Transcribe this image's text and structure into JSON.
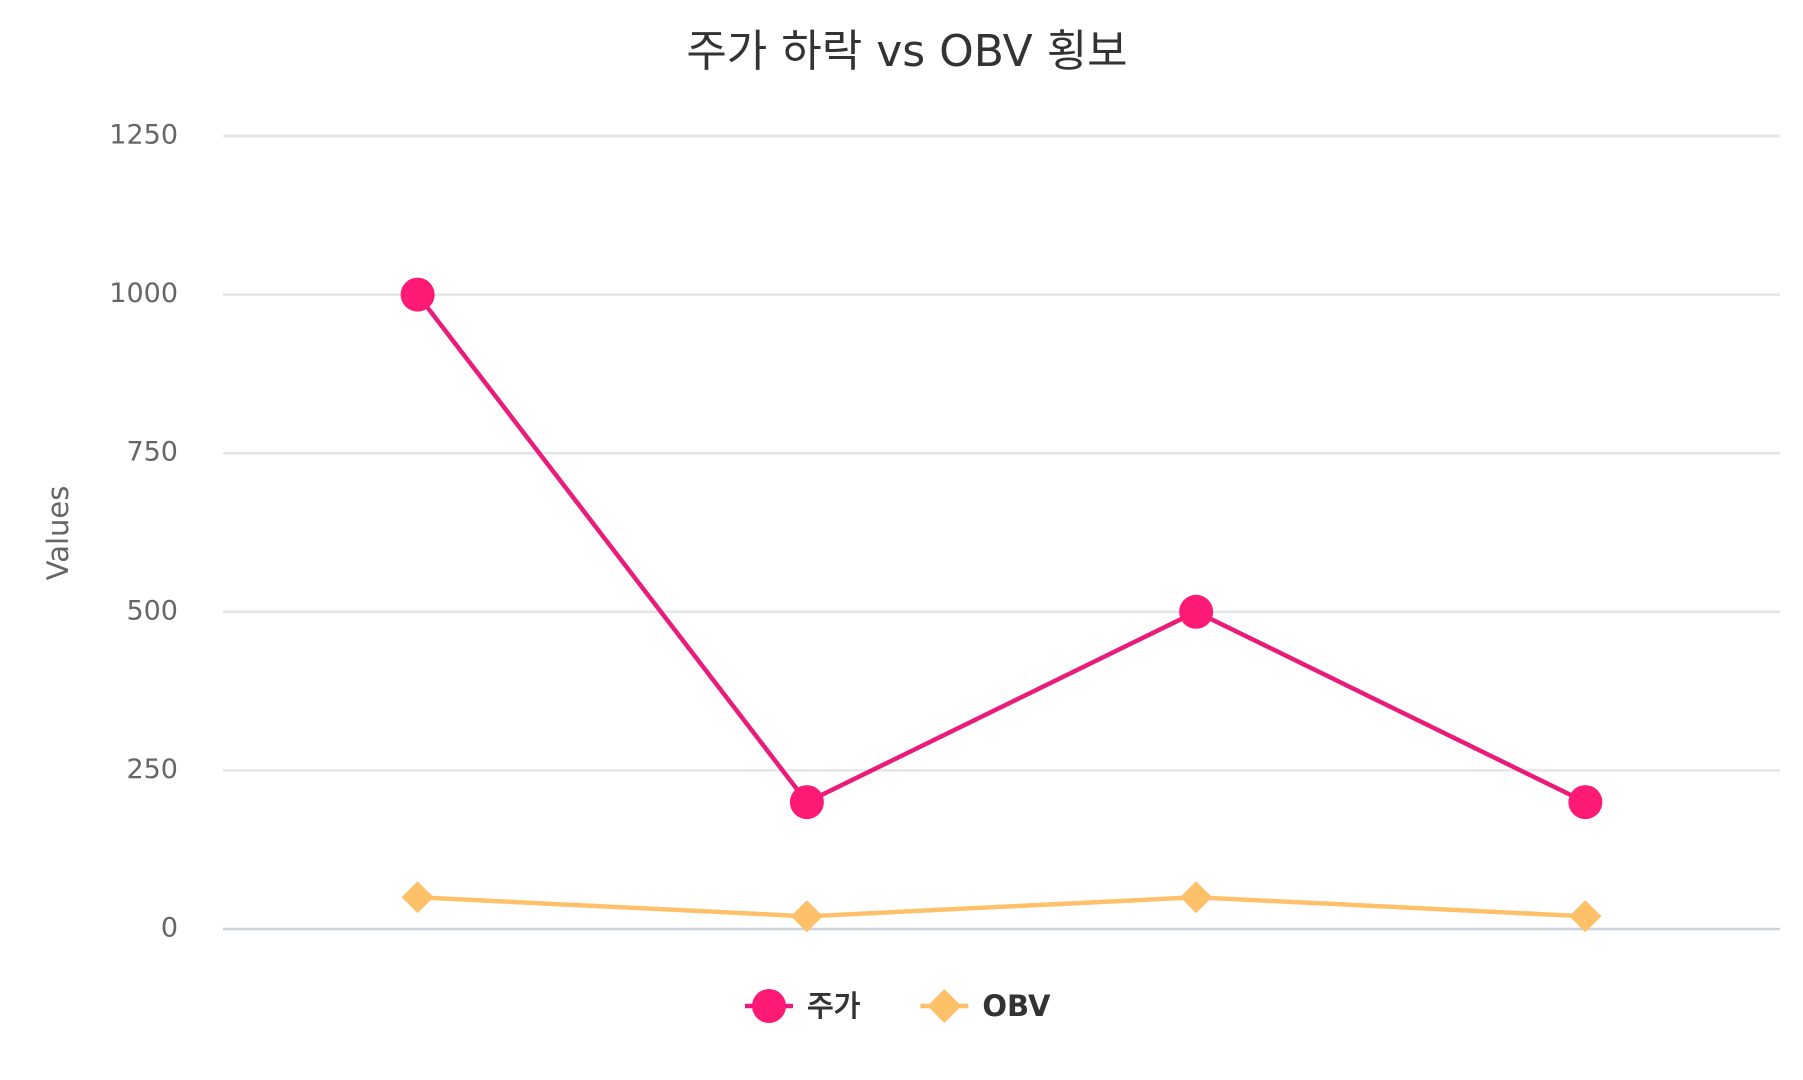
{
  "chart_data": {
    "type": "line",
    "title": "주가 하락 vs OBV 횡보",
    "y_label": "Values",
    "categories": [
      null,
      null,
      null,
      null
    ],
    "series": [
      {
        "name": "주가",
        "color": "#ff1a75",
        "line_color": "#ea1c7b",
        "marker": "circle",
        "values": [
          1000,
          200,
          500,
          200
        ]
      },
      {
        "name": "OBV",
        "color": "#ffc06a",
        "line_color": "#ffc06a",
        "marker": "diamond",
        "values": [
          50,
          20,
          50,
          20
        ]
      }
    ],
    "ylim": [
      0,
      1250
    ],
    "yticks": [
      0,
      250,
      500,
      750,
      1000,
      1250
    ],
    "grid": true,
    "legend": "bottom"
  }
}
